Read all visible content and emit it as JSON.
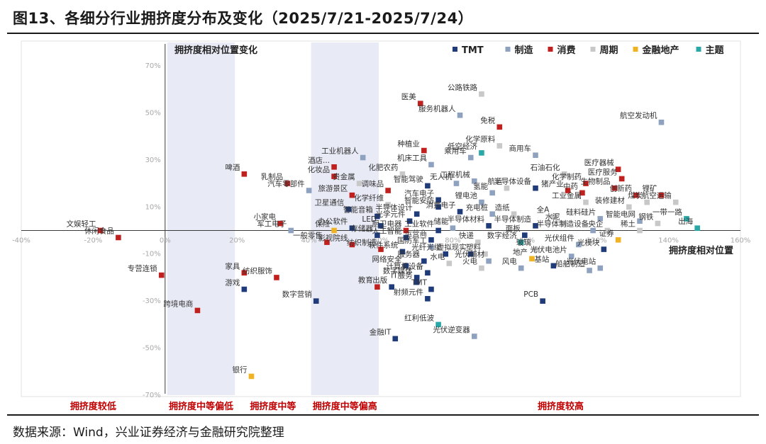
{
  "figure": {
    "title": "图13、各细分行业拥挤度分布及变化（2025/7/21-2025/7/24）",
    "source": "数据来源：Wind，兴业证券经济与金融研究院整理"
  },
  "colors": {
    "TMT": "#1f3b7a",
    "制造": "#8ea2bf",
    "消费": "#c0201e",
    "周期": "#c8c8c8",
    "金融地产": "#f0b323",
    "主题": "#2aa8a8",
    "band": "#e8ebf6",
    "zone_label": "#c00000"
  },
  "chart_data": {
    "type": "scatter",
    "title": "",
    "xlabel": "拥挤度相对位置",
    "ylabel": "拥挤度相对位置变化",
    "xlim": [
      -40,
      160
    ],
    "ylim": [
      -70,
      70
    ],
    "x_ticks": [
      "-40%",
      "-20%",
      "0%",
      "20%",
      "40%",
      "60%",
      "80%",
      "100%",
      "120%",
      "140%",
      "160%"
    ],
    "y_ticks": [
      "70%",
      "50%",
      "30%",
      "10%",
      "-10%",
      "-30%",
      "-50%",
      "-70%"
    ],
    "legend": [
      "TMT",
      "制造",
      "消费",
      "周期",
      "金融地产",
      "主题"
    ],
    "legend_position": "top-right",
    "zones": [
      {
        "label": "拥挤度较低",
        "x_range": [
          -40,
          0
        ],
        "shaded": false
      },
      {
        "label": "拥挤度中等偏低",
        "x_range": [
          0,
          20
        ],
        "shaded": true
      },
      {
        "label": "拥挤度中等",
        "x_range": [
          20,
          40
        ],
        "shaded": false
      },
      {
        "label": "拥挤度中等偏高",
        "x_range": [
          40,
          60
        ],
        "shaded": true
      },
      {
        "label": "拥挤度较高",
        "x_range": [
          60,
          160
        ],
        "shaded": false
      }
    ],
    "points": [
      {
        "label": "文娱轻工",
        "category": "消费",
        "x": -18,
        "y": 0
      },
      {
        "label": "休闲食品",
        "category": "消费",
        "x": -13,
        "y": -3
      },
      {
        "label": "专营连锁",
        "category": "消费",
        "x": -1,
        "y": -19
      },
      {
        "label": "跨境电商",
        "category": "消费",
        "x": 9,
        "y": -34
      },
      {
        "label": "啤酒",
        "category": "消费",
        "x": 22,
        "y": 24
      },
      {
        "label": "乳制品",
        "category": "消费",
        "x": 34,
        "y": 20
      },
      {
        "label": "汽车零部件",
        "category": "制造",
        "x": 40,
        "y": 17
      },
      {
        "label": "小家电",
        "category": "消费",
        "x": 32,
        "y": 3
      },
      {
        "label": "军工电子",
        "category": "制造",
        "x": 35,
        "y": 0
      },
      {
        "label": "家具",
        "category": "消费",
        "x": 22,
        "y": -18
      },
      {
        "label": "游戏",
        "category": "TMT",
        "x": 22,
        "y": -25
      },
      {
        "label": "纺织服饰",
        "category": "消费",
        "x": 31,
        "y": -20
      },
      {
        "label": "银行",
        "category": "金融地产",
        "x": 24,
        "y": -62
      },
      {
        "label": "酒店...",
        "category": "消费",
        "x": 47,
        "y": 27
      },
      {
        "label": "工业机器人",
        "category": "制造",
        "x": 55,
        "y": 31
      },
      {
        "label": "化妆品",
        "category": "消费",
        "x": 47,
        "y": 23
      },
      {
        "label": "贵金属",
        "category": "周期",
        "x": 54,
        "y": 20
      },
      {
        "label": "旅游景区",
        "category": "消费",
        "x": 52,
        "y": 15
      },
      {
        "label": "卫星通信",
        "category": "TMT",
        "x": 51,
        "y": 9
      },
      {
        "label": "智能音箱",
        "category": "TMT",
        "x": 59,
        "y": 6
      },
      {
        "label": "保险",
        "category": "金融地产",
        "x": 47,
        "y": 0
      },
      {
        "label": "办公软件",
        "category": "TMT",
        "x": 52,
        "y": 1
      },
      {
        "label": "一般零售",
        "category": "消费",
        "x": 45,
        "y": -5
      },
      {
        "label": "影视院线",
        "category": "消费",
        "x": 52,
        "y": -6
      },
      {
        "label": "数字营销",
        "category": "TMT",
        "x": 42,
        "y": -30
      },
      {
        "label": "医美",
        "category": "消费",
        "x": 71,
        "y": 54
      },
      {
        "label": "种植业",
        "category": "消费",
        "x": 72,
        "y": 34
      },
      {
        "label": "化肥农药",
        "category": "周期",
        "x": 66,
        "y": 24
      },
      {
        "label": "调味品",
        "category": "消费",
        "x": 62,
        "y": 17
      },
      {
        "label": "化学纤维",
        "category": "周期",
        "x": 62,
        "y": 11
      },
      {
        "label": "半导体设计",
        "category": "TMT",
        "x": 70,
        "y": 7
      },
      {
        "label": "光学元件",
        "category": "TMT",
        "x": 68,
        "y": 4
      },
      {
        "label": "存储器",
        "category": "TMT",
        "x": 59,
        "y": -2
      },
      {
        "label": "纺织制造",
        "category": "消费",
        "x": 60,
        "y": -8
      },
      {
        "label": "软件系统",
        "category": "TMT",
        "x": 66,
        "y": -9
      },
      {
        "label": "人工智能",
        "category": "TMT",
        "x": 67,
        "y": -3
      },
      {
        "label": "网络安全",
        "category": "TMT",
        "x": 67,
        "y": -15
      },
      {
        "label": "出版",
        "category": "TMT",
        "x": 63,
        "y": -24
      },
      {
        "label": "教育",
        "category": "消费",
        "x": 59,
        "y": -24
      },
      {
        "label": "LED",
        "category": "TMT",
        "x": 60,
        "y": 2
      },
      {
        "label": "厨卫电器",
        "category": "消费",
        "x": 67,
        "y": 0
      },
      {
        "label": "公路铁路",
        "category": "周期",
        "x": 88,
        "y": 58
      },
      {
        "label": "服务机器人",
        "category": "制造",
        "x": 82,
        "y": 49
      },
      {
        "label": "免税",
        "category": "消费",
        "x": 93,
        "y": 44
      },
      {
        "label": "化学原料",
        "category": "周期",
        "x": 93,
        "y": 36
      },
      {
        "label": "低空经济",
        "category": "主题",
        "x": 88,
        "y": 33
      },
      {
        "label": "机床工具",
        "category": "制造",
        "x": 74,
        "y": 28
      },
      {
        "label": "乘用车",
        "category": "制造",
        "x": 85,
        "y": 31
      },
      {
        "label": "智能驾驶",
        "category": "TMT",
        "x": 73,
        "y": 19
      },
      {
        "label": "无人机",
        "category": "制造",
        "x": 81,
        "y": 20
      },
      {
        "label": "工程机械",
        "category": "制造",
        "x": 86,
        "y": 21
      },
      {
        "label": "汽车电子",
        "category": "TMT",
        "x": 76,
        "y": 13
      },
      {
        "label": "智能安防",
        "category": "TMT",
        "x": 76,
        "y": 10
      },
      {
        "label": "消费电子",
        "category": "TMT",
        "x": 82,
        "y": 8
      },
      {
        "label": "锂电池",
        "category": "制造",
        "x": 88,
        "y": 12
      },
      {
        "label": "氢能",
        "category": "制造",
        "x": 91,
        "y": 16
      },
      {
        "label": "航运",
        "category": "周期",
        "x": 95,
        "y": 18
      },
      {
        "label": "充电桩",
        "category": "制造",
        "x": 91,
        "y": 7
      },
      {
        "label": "造纸",
        "category": "周期",
        "x": 97,
        "y": 7
      },
      {
        "label": "工业软件",
        "category": "TMT",
        "x": 76,
        "y": 0
      },
      {
        "label": "储能",
        "category": "制造",
        "x": 80,
        "y": 1
      },
      {
        "label": "半导体材料",
        "category": "TMT",
        "x": 90,
        "y": 2
      },
      {
        "label": "运营商",
        "category": "TMT",
        "x": 74,
        "y": -4
      },
      {
        "label": "快递",
        "category": "周期",
        "x": 87,
        "y": -5
      },
      {
        "label": "塑料",
        "category": "周期",
        "x": 89,
        "y": -10
      },
      {
        "label": "光纤光缆",
        "category": "TMT",
        "x": 78,
        "y": -10
      },
      {
        "label": "国防军工",
        "category": "制造",
        "x": 74,
        "y": -7
      },
      {
        "label": "虚拟现实",
        "category": "TMT",
        "x": 85,
        "y": -10
      },
      {
        "label": "服务器",
        "category": "TMT",
        "x": 72,
        "y": -13
      },
      {
        "label": "水电",
        "category": "周期",
        "x": 79,
        "y": -14
      },
      {
        "label": "火电",
        "category": "周期",
        "x": 88,
        "y": -16
      },
      {
        "label": "光伏辅材",
        "category": "制造",
        "x": 90,
        "y": -13
      },
      {
        "label": "数字媒体",
        "category": "TMT",
        "x": 70,
        "y": -20
      },
      {
        "label": "计算机设备",
        "category": "TMT",
        "x": 73,
        "y": -18
      },
      {
        "label": "IT服务",
        "category": "TMT",
        "x": 70,
        "y": -22
      },
      {
        "label": "TMT",
        "category": "TMT",
        "x": 74,
        "y": -25
      },
      {
        "label": "射频元件",
        "category": "TMT",
        "x": 73,
        "y": -29
      },
      {
        "label": "红利低波",
        "category": "主题",
        "x": 76,
        "y": -40
      },
      {
        "label": "光伏逆变器",
        "category": "制造",
        "x": 86,
        "y": -45
      },
      {
        "label": "金融IT",
        "category": "TMT",
        "x": 64,
        "y": -46
      },
      {
        "label": "商用车",
        "category": "制造",
        "x": 103,
        "y": 32
      },
      {
        "label": "石油石化",
        "category": "周期",
        "x": 111,
        "y": 24
      },
      {
        "label": "化学制药",
        "category": "消费",
        "x": 117,
        "y": 20
      },
      {
        "label": "中药",
        "category": "消费",
        "x": 116,
        "y": 16
      },
      {
        "label": "猪产业",
        "category": "消费",
        "x": 112,
        "y": 17
      },
      {
        "label": "半导体设备",
        "category": "TMT",
        "x": 103,
        "y": 18
      },
      {
        "label": "工业金属",
        "category": "周期",
        "x": 117,
        "y": 12
      },
      {
        "label": "全A",
        "category": "周期",
        "x": 108,
        "y": 6
      },
      {
        "label": "水泥",
        "category": "周期",
        "x": 111,
        "y": 3
      },
      {
        "label": "半导体制造",
        "category": "TMT",
        "x": 103,
        "y": 2
      },
      {
        "label": "面板",
        "category": "TMT",
        "x": 100,
        "y": -2
      },
      {
        "label": "玻璃",
        "category": "周期",
        "x": 103,
        "y": -8
      },
      {
        "label": "数字经济",
        "category": "主题",
        "x": 99,
        "y": -5
      },
      {
        "label": "地产",
        "category": "金融地产",
        "x": 102,
        "y": -12
      },
      {
        "label": "基站",
        "category": "TMT",
        "x": 108,
        "y": -15
      },
      {
        "label": "风电",
        "category": "制造",
        "x": 99,
        "y": -16
      },
      {
        "label": "PCB",
        "category": "TMT",
        "x": 105,
        "y": -30
      },
      {
        "label": "光伏组件",
        "category": "制造",
        "x": 115,
        "y": -6
      },
      {
        "label": "光伏电池片",
        "category": "制造",
        "x": 113,
        "y": -11
      },
      {
        "label": "光伏电站",
        "category": "制造",
        "x": 121,
        "y": -16
      },
      {
        "label": "船舶制造",
        "category": "制造",
        "x": 118,
        "y": -17
      },
      {
        "label": "半导体制造设备",
        "category": "制造",
        "x": 119,
        "y": 0
      },
      {
        "label": "央企",
        "category": "周期",
        "x": 123,
        "y": 0
      },
      {
        "label": "证券",
        "category": "金融地产",
        "x": 126,
        "y": -4
      },
      {
        "label": "硅料硅片",
        "category": "制造",
        "x": 121,
        "y": 5
      },
      {
        "label": "光模块",
        "category": "TMT",
        "x": 122,
        "y": -8
      },
      {
        "label": "医疗器械",
        "category": "消费",
        "x": 126,
        "y": 26
      },
      {
        "label": "医疗服务",
        "category": "消费",
        "x": 127,
        "y": 22
      },
      {
        "label": "生物制品",
        "category": "消费",
        "x": 125,
        "y": 18
      },
      {
        "label": "航空发动机",
        "category": "制造",
        "x": 138,
        "y": 46
      },
      {
        "label": "创新药",
        "category": "消费",
        "x": 131,
        "y": 15
      },
      {
        "label": "锂矿",
        "category": "消费",
        "x": 138,
        "y": 15
      },
      {
        "label": "煤炭",
        "category": "周期",
        "x": 134,
        "y": 12
      },
      {
        "label": "航空运输",
        "category": "周期",
        "x": 142,
        "y": 12
      },
      {
        "label": "装修建材",
        "category": "周期",
        "x": 129,
        "y": 10
      },
      {
        "label": "智能电网",
        "category": "制造",
        "x": 132,
        "y": 4
      },
      {
        "label": "钢铁",
        "category": "周期",
        "x": 137,
        "y": 3
      },
      {
        "label": "稀土",
        "category": "周期",
        "x": 132,
        "y": 0
      },
      {
        "label": "一带一路",
        "category": "主题",
        "x": 145,
        "y": 5
      },
      {
        "label": "出海",
        "category": "主题",
        "x": 148,
        "y": 1
      }
    ]
  }
}
